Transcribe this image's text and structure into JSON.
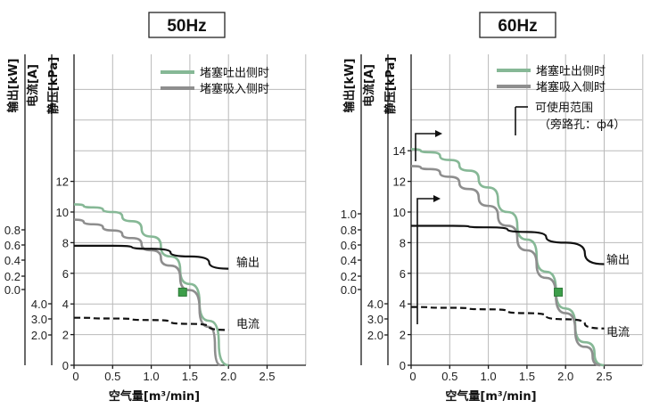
{
  "chart_data": [
    {
      "type": "line",
      "title": "50Hz",
      "xlabel": "空气量[m³/min]",
      "ylabel": "静压[kPa]",
      "ylabel_current": "电流[A]",
      "ylabel_output": "输出[kW]",
      "xlim": [
        0,
        3.0
      ],
      "ylim": [
        0,
        18
      ],
      "x_ticks": [
        "0",
        "0.5",
        "1.0",
        "1.5",
        "2.0",
        "2.5"
      ],
      "y_ticks": [
        "0",
        "2",
        "4",
        "6",
        "8",
        "10",
        "12"
      ],
      "current_ticks": [
        "2.0",
        "3.0",
        "4.0"
      ],
      "output_ticks": [
        "0.0",
        "0.2",
        "0.4",
        "0.6",
        "0.8"
      ],
      "grid": true,
      "legend": [
        "堵塞吐出侧时",
        "堵塞吸入侧时"
      ],
      "series": [
        {
          "name": "堵塞吐出侧时",
          "color": "#86b896",
          "x": [
            0,
            0.25,
            0.5,
            0.75,
            1.0,
            1.25,
            1.5,
            1.75,
            2.0
          ],
          "y": [
            10.5,
            10.3,
            10.0,
            9.4,
            8.4,
            7.1,
            5.3,
            2.9,
            0
          ]
        },
        {
          "name": "堵塞吸入侧时",
          "color": "#8e8e8e",
          "x": [
            0,
            0.25,
            0.5,
            0.75,
            1.0,
            1.25,
            1.5,
            1.75,
            1.9
          ],
          "y": [
            9.5,
            9.2,
            8.8,
            8.3,
            7.5,
            6.5,
            4.9,
            2.5,
            0
          ]
        },
        {
          "name": "输出",
          "color": "#111111",
          "x": [
            0,
            0.5,
            1.0,
            1.5,
            2.0
          ],
          "y": [
            7.8,
            7.8,
            7.6,
            7.1,
            6.3
          ]
        },
        {
          "name": "电流",
          "color": "#111111",
          "dashed": true,
          "x": [
            0,
            0.5,
            1.0,
            1.5,
            2.0
          ],
          "y": [
            3.1,
            3.05,
            2.95,
            2.7,
            2.3
          ]
        }
      ],
      "labels": {
        "output": "输出",
        "current": "电流"
      },
      "marker": {
        "x": 1.4,
        "y": 4.8,
        "color": "#3d9e4a"
      }
    },
    {
      "type": "line",
      "title": "60Hz",
      "xlabel": "空气量[m³/min]",
      "ylabel": "静压[kPa]",
      "ylabel_current": "电流[A]",
      "ylabel_output": "输出[kW]",
      "xlim": [
        0,
        3.0
      ],
      "ylim": [
        0,
        18
      ],
      "x_ticks": [
        "0",
        "0.5",
        "1.0",
        "1.5",
        "2.0",
        "2.5"
      ],
      "y_ticks": [
        "0",
        "2",
        "4",
        "6",
        "8",
        "10",
        "12",
        "14"
      ],
      "current_ticks": [
        "2.0",
        "3.0",
        "4.0"
      ],
      "output_ticks": [
        "0.0",
        "0.2",
        "0.4",
        "0.6",
        "0.8",
        "1.0"
      ],
      "grid": true,
      "legend": [
        "堵塞吐出侧时",
        "堵塞吸入侧时",
        "可使用范围",
        "（旁路孔：ф4）"
      ],
      "series": [
        {
          "name": "堵塞吐出侧时",
          "color": "#86b896",
          "x": [
            0,
            0.25,
            0.5,
            0.75,
            1.0,
            1.25,
            1.5,
            1.75,
            2.0,
            2.25,
            2.5
          ],
          "y": [
            14.1,
            13.9,
            13.4,
            12.7,
            11.6,
            10.0,
            8.2,
            6.1,
            3.7,
            1.5,
            0
          ]
        },
        {
          "name": "堵塞吸入侧时",
          "color": "#8e8e8e",
          "x": [
            0,
            0.25,
            0.5,
            0.75,
            1.0,
            1.25,
            1.5,
            1.75,
            2.0,
            2.25,
            2.45
          ],
          "y": [
            13.0,
            12.8,
            12.3,
            11.5,
            10.4,
            9.1,
            7.5,
            5.7,
            3.4,
            1.2,
            0
          ]
        },
        {
          "name": "输出",
          "color": "#111111",
          "x": [
            0,
            0.5,
            1.0,
            1.5,
            2.0,
            2.5
          ],
          "y": [
            9.1,
            9.1,
            9.0,
            8.7,
            8.0,
            6.6
          ]
        },
        {
          "name": "电流",
          "color": "#111111",
          "dashed": true,
          "x": [
            0,
            0.5,
            1.0,
            1.5,
            2.0,
            2.5
          ],
          "y": [
            3.8,
            3.75,
            3.65,
            3.4,
            3.0,
            2.4
          ]
        }
      ],
      "labels": {
        "output": "输出",
        "current": "电流"
      },
      "marker": {
        "x": 1.9,
        "y": 4.8,
        "color": "#3d9e4a"
      }
    }
  ]
}
